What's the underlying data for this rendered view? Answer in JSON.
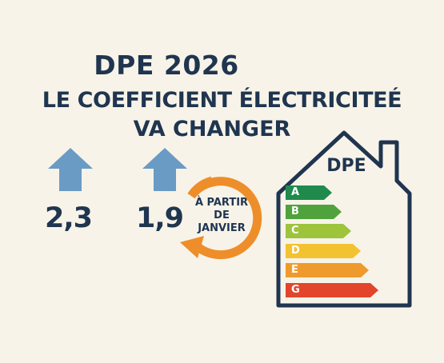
{
  "title": {
    "main": "DPE 2026",
    "line1": "LE COEFFICIENT ÉLECTRICITEÉ",
    "line2": "VA CHANGER"
  },
  "old_value": {
    "value": "2,3",
    "icon": "up-arrow-icon"
  },
  "new_value": {
    "value": "1,9",
    "icon": "up-arrow-icon"
  },
  "cycle_badge": {
    "line1": "À PARTIR",
    "line2": "DE",
    "line3": "JANVIER",
    "icon": "circular-arrow-icon"
  },
  "dpe_label": {
    "title": "DPE",
    "icon": "house-icon",
    "classes": [
      {
        "letter": "A",
        "color": "#1f8a4c"
      },
      {
        "letter": "B",
        "color": "#4fa23c"
      },
      {
        "letter": "C",
        "color": "#9dc43b"
      },
      {
        "letter": "D",
        "color": "#f2c230"
      },
      {
        "letter": "E",
        "color": "#ef9a2d"
      },
      {
        "letter": "G",
        "color": "#e2452b"
      }
    ]
  },
  "colors": {
    "background": "#f8f3e8",
    "navy": "#1f3550",
    "arrow_blue": "#6a9bc4",
    "orange": "#ee8e2a"
  }
}
